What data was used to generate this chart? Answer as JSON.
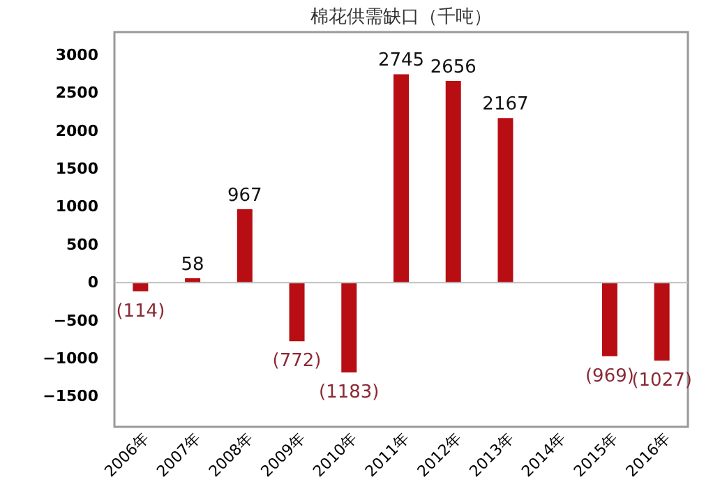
{
  "chart_data": {
    "type": "bar",
    "title": "棉花供需缺口（千吨）",
    "categories": [
      "2006年",
      "2007年",
      "2008年",
      "2009年",
      "2010年",
      "2011年",
      "2012年",
      "2013年",
      "2014年",
      "2015年",
      "2016年"
    ],
    "values": [
      -114,
      58,
      967,
      -772,
      -1183,
      2745,
      2656,
      2167,
      null,
      -969,
      -1027
    ],
    "value_labels": [
      "(114)",
      "58",
      "967",
      "(772)",
      "(1183)",
      "2745",
      "2656",
      "2167",
      null,
      "(969)",
      "(1027)"
    ],
    "color": "#b80d12",
    "ylim": [
      -1900,
      3300
    ],
    "yticks": [
      -1500,
      -1000,
      -500,
      0,
      500,
      1000,
      1500,
      2000,
      2500,
      3000
    ],
    "ref_lines": [
      {
        "axis": "y",
        "value": 0,
        "color": "#bfbfbf"
      }
    ],
    "grid": false
  }
}
